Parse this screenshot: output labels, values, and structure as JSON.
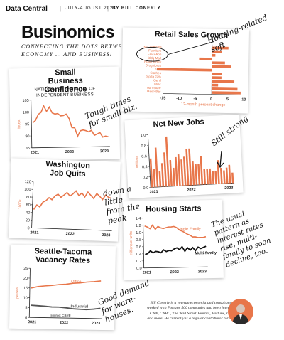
{
  "header": {
    "section": "Data Central",
    "date": "JULY-AUGUST 2023",
    "byline": "BY BILL CONERLY"
  },
  "page_title": "Businomics",
  "page_subtitle": "CONNECTING THE DOTS BETWEEN THE ECONOMY … AND BUSINESS!",
  "notes": {
    "retail": "Housing-related\nsoft",
    "small_biz": "Tough times\nfor small biz.",
    "jobs": "Still strong",
    "quits": "down a\nlittle\nfrom the\npeak",
    "housing": "The usual\npattern as\ninterest rates\nrise, multi-\nfamily to soon\ndecline, too.",
    "vacancy": "Good demand\nfor ware-\nhouses."
  },
  "bio": "Bill Conerly is a veteran economist and consultant who has worked with Fortune 500 companies and been interviewed by CNN, CNBC, The Wall Street Journal, Fortune, USA Today, and more. He currently is a regular contributor for Forbes.",
  "accent_color": "#e8764a",
  "dark_color": "#111111",
  "chart_data": [
    {
      "id": "retail",
      "type": "bar",
      "orientation": "horizontal",
      "title": "Retail Sales Growth",
      "xlabel": "12-month percent change",
      "xlim": [
        -15,
        10
      ],
      "xticks": [
        -15,
        -10,
        -5,
        0,
        5,
        10
      ],
      "categories": [
        "Mtr Vehicles",
        "Furniture",
        "Elec+App",
        "Bldg Matl",
        "Food & Bev",
        "Drugstores",
        "Gas",
        "Clothes",
        "Sprtg Gds",
        "Gen'l",
        "Misc",
        "non-store",
        "Rest+Bar"
      ],
      "values": [
        5,
        3,
        1,
        -4,
        4,
        6,
        -17,
        3,
        3,
        7,
        2,
        8,
        9
      ],
      "highlight": [
        "Furniture",
        "Elec+App",
        "Bldg Matl"
      ]
    },
    {
      "id": "small_biz",
      "type": "line",
      "title": "Small Business Confidence",
      "subtitle": "NATIONAL FEDERATION OF INDEPENDENT BUSINESS",
      "ylabel": "index",
      "ylim": [
        85,
        105
      ],
      "yticks": [
        85,
        90,
        95,
        100,
        105
      ],
      "xticks": [
        "2021",
        "2022",
        "2023"
      ],
      "series": [
        {
          "values": [
            95.5,
            96.5,
            99,
            99.8,
            102.5,
            100.2,
            102,
            99.5,
            99,
            99.2,
            98.2,
            98.3,
            98.9,
            97.1,
            93.2,
            93.1,
            89.5,
            91.8,
            92.1,
            91.8,
            91.3,
            91.9,
            89.8,
            90.3,
            90.9,
            89,
            89.4,
            89.1
          ]
        }
      ]
    },
    {
      "id": "jobs",
      "type": "bar",
      "title": "Net New Jobs",
      "ylabel": "Millions",
      "ylim": [
        0,
        1.0
      ],
      "yticks": [
        0.0,
        0.2,
        0.4,
        0.6,
        0.8,
        1.0
      ],
      "xticks": [
        "2021",
        "2022",
        "2023"
      ],
      "values": [
        0.55,
        0.35,
        0.75,
        0.3,
        0.45,
        0.65,
        0.95,
        0.5,
        0.35,
        0.55,
        0.6,
        0.5,
        0.55,
        0.7,
        0.7,
        0.45,
        0.4,
        0.4,
        0.55,
        0.3,
        0.3,
        0.3,
        0.25,
        0.25,
        0.45,
        0.3,
        0.25,
        0.3,
        0.35,
        0.2
      ]
    },
    {
      "id": "quits",
      "type": "line",
      "title": "Washington Job Quits",
      "ylabel": "1000s",
      "ylim": [
        0,
        120
      ],
      "yticks": [
        0,
        20,
        40,
        60,
        80,
        100,
        120
      ],
      "xticks": [
        "2021",
        "2022",
        "2023"
      ],
      "series": [
        {
          "values": [
            48,
            60,
            55,
            68,
            72,
            80,
            75,
            85,
            90,
            82,
            88,
            95,
            86,
            92,
            100,
            88,
            95,
            85,
            98,
            90,
            82,
            95,
            88,
            80,
            92,
            86,
            84
          ]
        }
      ]
    },
    {
      "id": "housing",
      "type": "line",
      "title": "Housing Starts",
      "ylabel": "millions of units",
      "ylim": [
        0,
        1.4
      ],
      "yticks": [
        0,
        0.2,
        0.4,
        0.6,
        0.8,
        1.0,
        1.2,
        1.4
      ],
      "xticks": [
        "2021",
        "2022",
        "2023"
      ],
      "series": [
        {
          "name": "Single Family",
          "values": [
            1.18,
            1.15,
            1.1,
            1.2,
            1.08,
            1.16,
            1.12,
            1.1,
            1.12,
            1.14,
            1.14,
            1.15,
            1.12,
            1.05,
            1.02,
            0.98,
            0.93,
            0.9,
            0.85,
            0.85,
            0.83,
            0.83,
            0.83,
            0.85
          ]
        },
        {
          "name": "Multi-family",
          "values": [
            0.38,
            0.4,
            0.48,
            0.42,
            0.46,
            0.45,
            0.42,
            0.5,
            0.45,
            0.48,
            0.47,
            0.52,
            0.55,
            0.5,
            0.58,
            0.45,
            0.55,
            0.48,
            0.55,
            0.46,
            0.56,
            0.52,
            0.55,
            0.58
          ]
        }
      ]
    },
    {
      "id": "vacancy",
      "type": "line",
      "title": "Seattle-Tacoma Vacancy Rates",
      "ylabel": "percent",
      "ylim": [
        0,
        25
      ],
      "yticks": [
        0,
        5,
        10,
        15,
        20,
        25
      ],
      "xticks": [
        "2021",
        "2022",
        "2023"
      ],
      "annotation": "source: CBRE",
      "series": [
        {
          "name": "Office",
          "values": [
            15,
            15.8,
            16.2,
            16.5,
            17,
            17.2,
            17.8,
            18,
            18.5,
            18.8,
            19.2
          ]
        },
        {
          "name": "Industrial",
          "values": [
            6.2,
            6,
            5.8,
            5.5,
            5.5,
            5.2,
            4.8,
            4.6,
            4.5,
            4.8,
            5.2
          ]
        }
      ]
    }
  ]
}
